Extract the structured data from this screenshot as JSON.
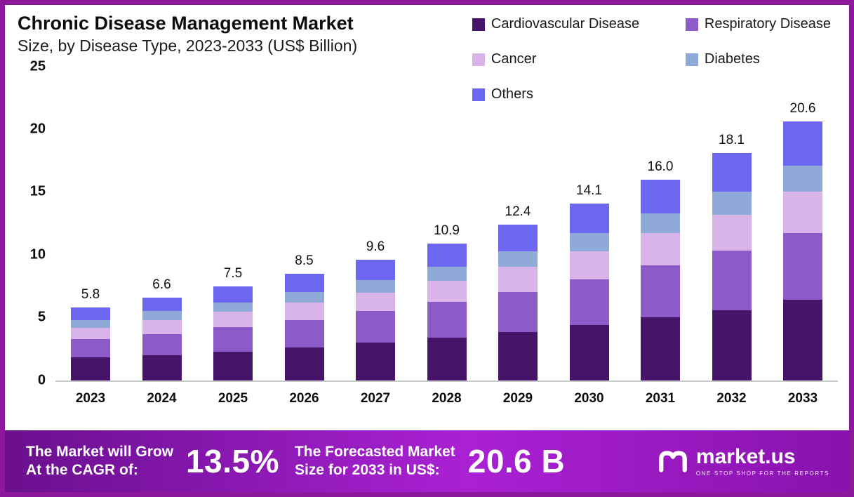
{
  "title": "Chronic Disease Management Market",
  "subtitle": "Size, by Disease Type, 2023-2033 (US$ Billion)",
  "colors": {
    "frame": "#8e189c",
    "axis_line": "#c9c9c9",
    "banner_gradient": [
      "#6a0f8e",
      "#aa21d4",
      "#8912ae"
    ]
  },
  "chart_data": {
    "type": "bar",
    "stacked": true,
    "title": "Chronic Disease Management Market Size, by Disease Type, 2023-2033 (US$ Billion)",
    "xlabel": "",
    "ylabel": "",
    "ylim": [
      0,
      25
    ],
    "yticks": [
      0,
      5,
      10,
      15,
      20,
      25
    ],
    "grid": false,
    "legend_position": "top-right",
    "categories": [
      "2023",
      "2024",
      "2025",
      "2026",
      "2027",
      "2028",
      "2029",
      "2030",
      "2031",
      "2032",
      "2033"
    ],
    "totals": [
      "5.8",
      "6.6",
      "7.5",
      "8.5",
      "9.6",
      "10.9",
      "12.4",
      "14.1",
      "16.0",
      "18.1",
      "20.6"
    ],
    "series": [
      {
        "name": "Cardiovascular Disease",
        "color": "#461468",
        "values": [
          1.8,
          2.0,
          2.3,
          2.6,
          3.0,
          3.4,
          3.85,
          4.4,
          5.0,
          5.6,
          6.4
        ]
      },
      {
        "name": "Respiratory Disease",
        "color": "#8d5bc8",
        "values": [
          1.5,
          1.7,
          1.95,
          2.2,
          2.5,
          2.85,
          3.2,
          3.65,
          4.15,
          4.7,
          5.35
        ]
      },
      {
        "name": "Cancer",
        "color": "#d8b4e8",
        "values": [
          0.9,
          1.1,
          1.2,
          1.4,
          1.5,
          1.7,
          2.0,
          2.25,
          2.55,
          2.9,
          3.3
        ]
      },
      {
        "name": "Diabetes",
        "color": "#8fa9d8",
        "values": [
          0.6,
          0.7,
          0.75,
          0.85,
          1.0,
          1.1,
          1.25,
          1.4,
          1.6,
          1.8,
          2.05
        ]
      },
      {
        "name": "Others",
        "color": "#6c66f0",
        "values": [
          1.0,
          1.1,
          1.3,
          1.45,
          1.6,
          1.85,
          2.1,
          2.4,
          2.7,
          3.1,
          3.5
        ]
      }
    ]
  },
  "banner": {
    "cagr_line1": "The Market will Grow",
    "cagr_line2": "At the CAGR of:",
    "cagr_value": "13.5%",
    "forecast_line1": "The Forecasted Market",
    "forecast_line2": "Size for 2033 in US$:",
    "forecast_value": "20.6 B",
    "brand": "market.us",
    "tagline": "ONE STOP SHOP FOR THE REPORTS"
  }
}
